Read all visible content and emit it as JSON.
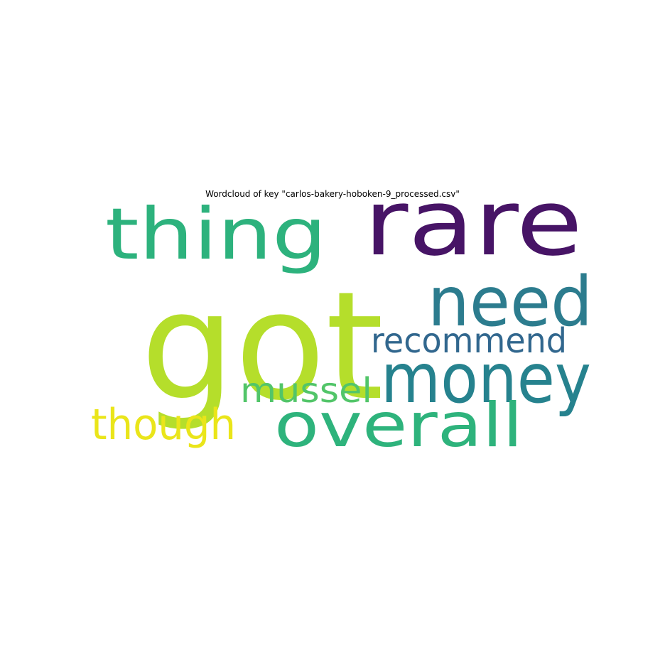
{
  "chart_data": {
    "type": "wordcloud",
    "title": "Wordcloud of key \"carlos-bakery-hoboken-9_processed.csv\"",
    "axes": "off",
    "background": "#ffffff",
    "words": [
      {
        "text": "got",
        "color": "#b5de2b",
        "weight": 1.0
      },
      {
        "text": "rare",
        "color": "#471466",
        "weight": 0.72
      },
      {
        "text": "thing",
        "color": "#2db27d",
        "weight": 0.55
      },
      {
        "text": "need",
        "color": "#2c7c8e",
        "weight": 0.52
      },
      {
        "text": "money",
        "color": "#26828e",
        "weight": 0.52
      },
      {
        "text": "overall",
        "color": "#2eb37c",
        "weight": 0.46
      },
      {
        "text": "recommend",
        "color": "#31678e",
        "weight": 0.3
      },
      {
        "text": "mussel",
        "color": "#52c569",
        "weight": 0.3
      },
      {
        "text": "though",
        "color": "#eae51a",
        "weight": 0.36
      }
    ]
  }
}
